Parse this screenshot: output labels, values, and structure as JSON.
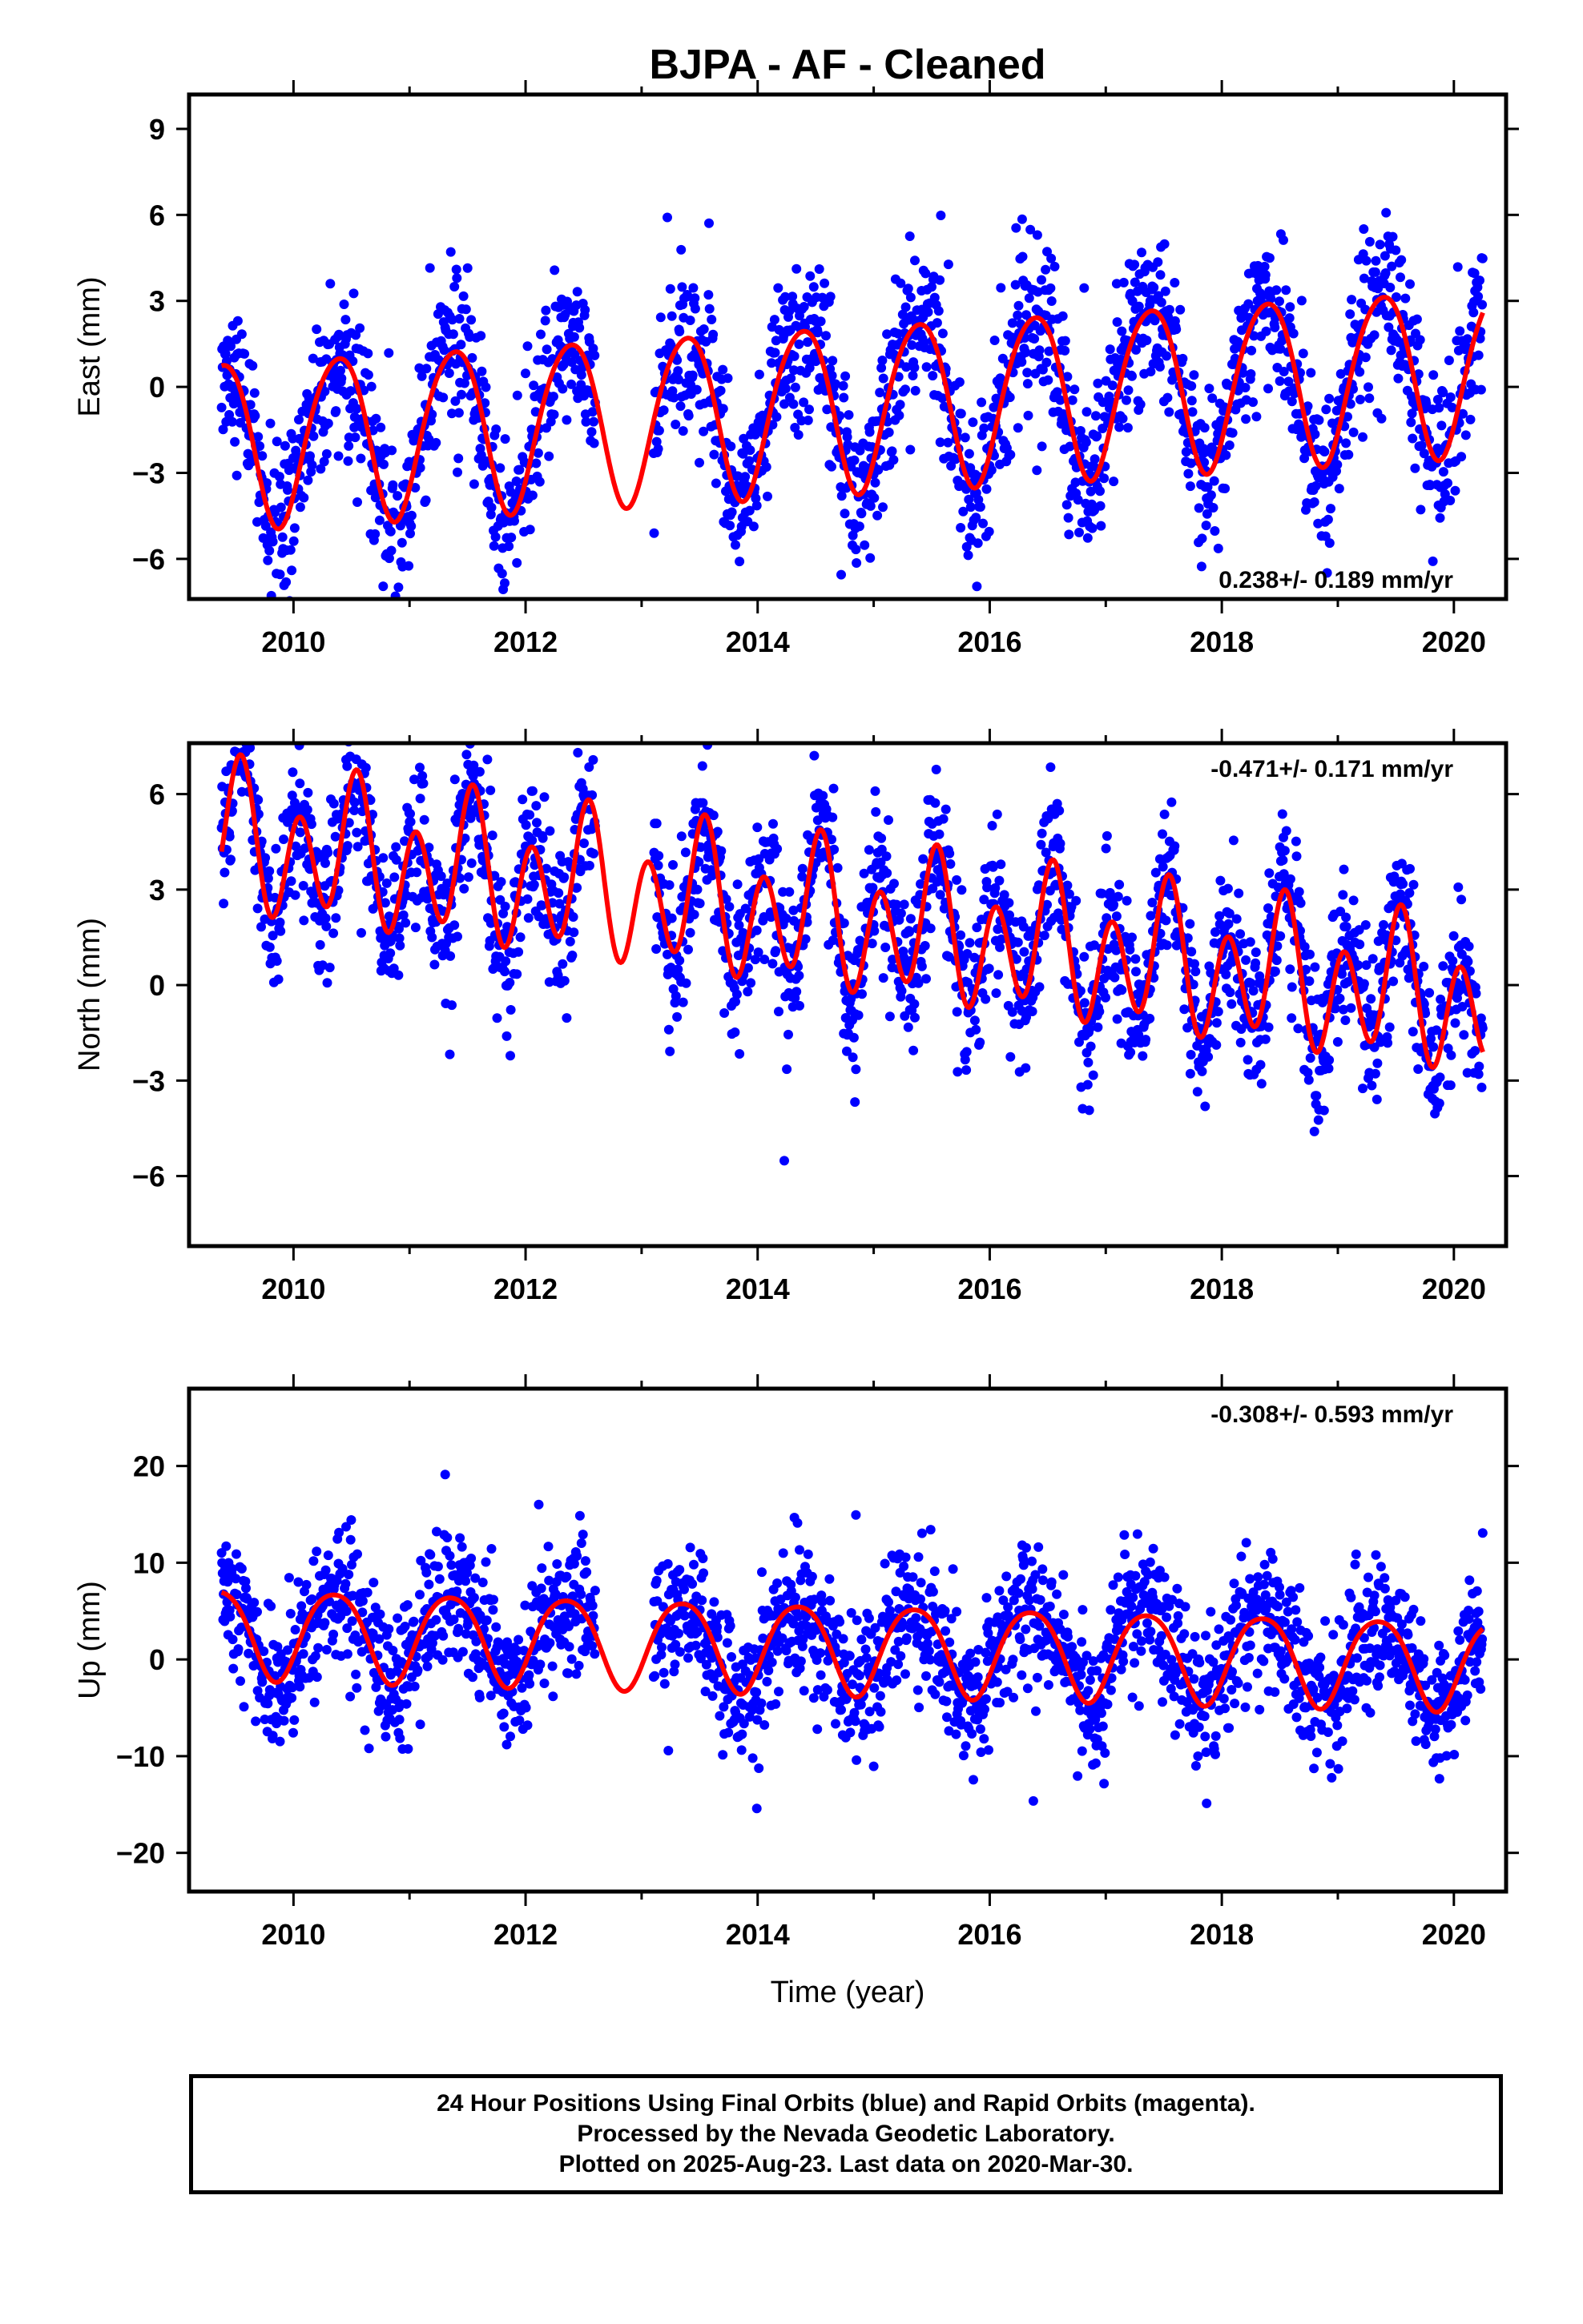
{
  "title": "BJPA  - AF - Cleaned",
  "x_axis_label": "Time (year)",
  "footer": {
    "line1": "24 Hour Positions Using Final Orbits (blue) and Rapid Orbits (magenta).",
    "line2": "Processed by the Nevada Geodetic Laboratory.",
    "line3": "Plotted on 2025-Aug-23. Last data on 2020-Mar-30."
  },
  "colors": {
    "points": "#0000ff",
    "model": "#ff0000",
    "frame": "#000000"
  },
  "chart_data": [
    {
      "type": "scatter",
      "ylabel": "East (mm)",
      "rate_text": "0.238+/- 0.189 mm/yr",
      "rate_position": "bottom-right",
      "xlim": [
        2009.1,
        2020.45
      ],
      "ylim": [
        -7.4,
        10.2
      ],
      "xticks": [
        2010,
        2012,
        2014,
        2016,
        2018,
        2020
      ],
      "yticks": [
        -6,
        -3,
        0,
        3,
        6,
        9
      ],
      "data_start": 2009.38,
      "data_end": 2020.25,
      "gap": [
        2012.6,
        2013.1
      ],
      "model": {
        "trend_mm_per_yr": 0.238,
        "offset": -0.6,
        "annual_amp": 2.9,
        "annual_phase_yr": 0.38,
        "semiannual_amp": 0.3,
        "semiannual_phase_yr": 0.1
      },
      "scatter_sigma": 1.4,
      "series": [
        {
          "values_note": ""
        }
      ]
    },
    {
      "type": "scatter",
      "ylabel": "North (mm)",
      "rate_text": "-0.471+/- 0.171 mm/yr",
      "rate_position": "top-right",
      "xlim": [
        2009.1,
        2020.45
      ],
      "ylim": [
        -8.2,
        7.6
      ],
      "xticks": [
        2010,
        2012,
        2014,
        2016,
        2018,
        2020
      ],
      "yticks": [
        -6,
        -3,
        0,
        3,
        6
      ],
      "data_start": 2009.38,
      "data_end": 2020.25,
      "gap": [
        2012.6,
        2013.1
      ],
      "model": {
        "trend_mm_per_yr": -0.471,
        "offset": 2.0,
        "annual_amp": 0.9,
        "annual_phase_yr": 0.5,
        "semiannual_amp": 1.9,
        "semiannual_phase_yr": 0.05
      },
      "scatter_sigma": 1.2,
      "series": [
        {
          "values_note": ""
        }
      ]
    },
    {
      "type": "scatter",
      "ylabel": "Up (mm)",
      "rate_text": "-0.308+/- 0.593 mm/yr",
      "rate_position": "top-right",
      "xlim": [
        2009.1,
        2020.45
      ],
      "ylim": [
        -24,
        28
      ],
      "xticks": [
        2010,
        2012,
        2014,
        2016,
        2018,
        2020
      ],
      "yticks": [
        -20,
        -10,
        0,
        10,
        20
      ],
      "data_start": 2009.38,
      "data_end": 2020.25,
      "gap": [
        2012.6,
        2013.1
      ],
      "model": {
        "trend_mm_per_yr": -0.308,
        "offset": 1.3,
        "annual_amp": 4.6,
        "annual_phase_yr": 0.35,
        "semiannual_amp": 0.6,
        "semiannual_phase_yr": 0.1
      },
      "scatter_sigma": 3.6,
      "series": [
        {
          "values_note": ""
        }
      ]
    }
  ]
}
